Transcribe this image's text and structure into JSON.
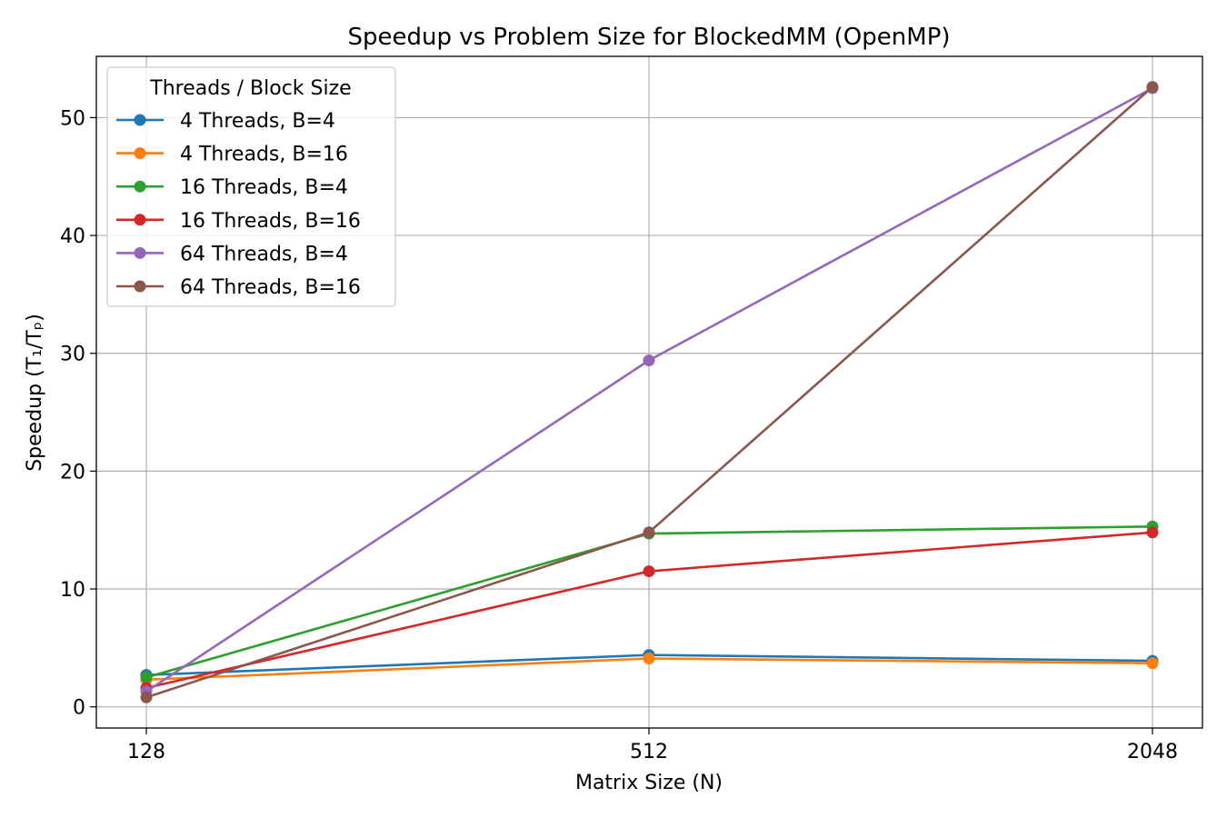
{
  "chart_data": {
    "type": "line",
    "title": "Speedup vs Problem Size for BlockedMM (OpenMP)",
    "xlabel": "Matrix Size (N)",
    "ylabel": "Speedup (T₁/Tₚ)",
    "categories": [
      "128",
      "512",
      "2048"
    ],
    "y_ticks": [
      0,
      10,
      20,
      30,
      40,
      50
    ],
    "ylim": [
      -1.8,
      55.2
    ],
    "grid": true,
    "legend": {
      "title": "Threads / Block Size",
      "placement": "top-left"
    },
    "series": [
      {
        "name": "4 Threads, B=4",
        "color": "#1f77b4",
        "values": [
          2.7,
          4.4,
          3.9
        ]
      },
      {
        "name": "4 Threads, B=16",
        "color": "#ff7f0e",
        "values": [
          2.3,
          4.1,
          3.7
        ]
      },
      {
        "name": "16 Threads, B=4",
        "color": "#2ca02c",
        "values": [
          2.5,
          14.7,
          15.3
        ]
      },
      {
        "name": "16 Threads, B=16",
        "color": "#d62728",
        "values": [
          1.6,
          11.5,
          14.8
        ]
      },
      {
        "name": "64 Threads, B=4",
        "color": "#9467bd",
        "values": [
          1.3,
          29.4,
          52.5
        ]
      },
      {
        "name": "64 Threads, B=16",
        "color": "#8c564b",
        "values": [
          0.8,
          14.8,
          52.6
        ]
      }
    ]
  }
}
